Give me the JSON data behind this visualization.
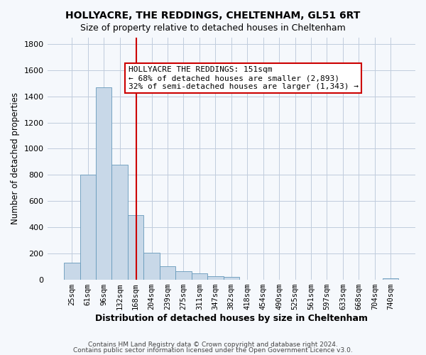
{
  "title": "HOLLYACRE, THE REDDINGS, CHELTENHAM, GL51 6RT",
  "subtitle": "Size of property relative to detached houses in Cheltenham",
  "xlabel": "Distribution of detached houses by size in Cheltenham",
  "ylabel": "Number of detached properties",
  "footer_lines": [
    "Contains HM Land Registry data © Crown copyright and database right 2024.",
    "Contains public sector information licensed under the Open Government Licence v3.0."
  ],
  "categories": [
    "25sqm",
    "61sqm",
    "96sqm",
    "132sqm",
    "168sqm",
    "204sqm",
    "239sqm",
    "275sqm",
    "311sqm",
    "347sqm",
    "382sqm",
    "418sqm",
    "454sqm",
    "490sqm",
    "525sqm",
    "561sqm",
    "597sqm",
    "633sqm",
    "668sqm",
    "704sqm",
    "740sqm"
  ],
  "values": [
    130,
    800,
    1470,
    880,
    495,
    205,
    105,
    65,
    50,
    30,
    20,
    0,
    0,
    0,
    0,
    0,
    0,
    0,
    0,
    0,
    10
  ],
  "bar_color": "#c8d8e8",
  "bar_edge_color": "#6699bb",
  "ylim": [
    0,
    1850
  ],
  "yticks": [
    0,
    200,
    400,
    600,
    800,
    1000,
    1200,
    1400,
    1600,
    1800
  ],
  "property_line_x": 151,
  "property_line_color": "#cc0000",
  "annotation_box_text": "HOLLYACRE THE REDDINGS: 151sqm\n← 68% of detached houses are smaller (2,893)\n32% of semi-detached houses are larger (1,343) →",
  "annotation_box_color": "#cc0000",
  "grid_color": "#c0ccdd",
  "bg_color": "#f5f8fc"
}
